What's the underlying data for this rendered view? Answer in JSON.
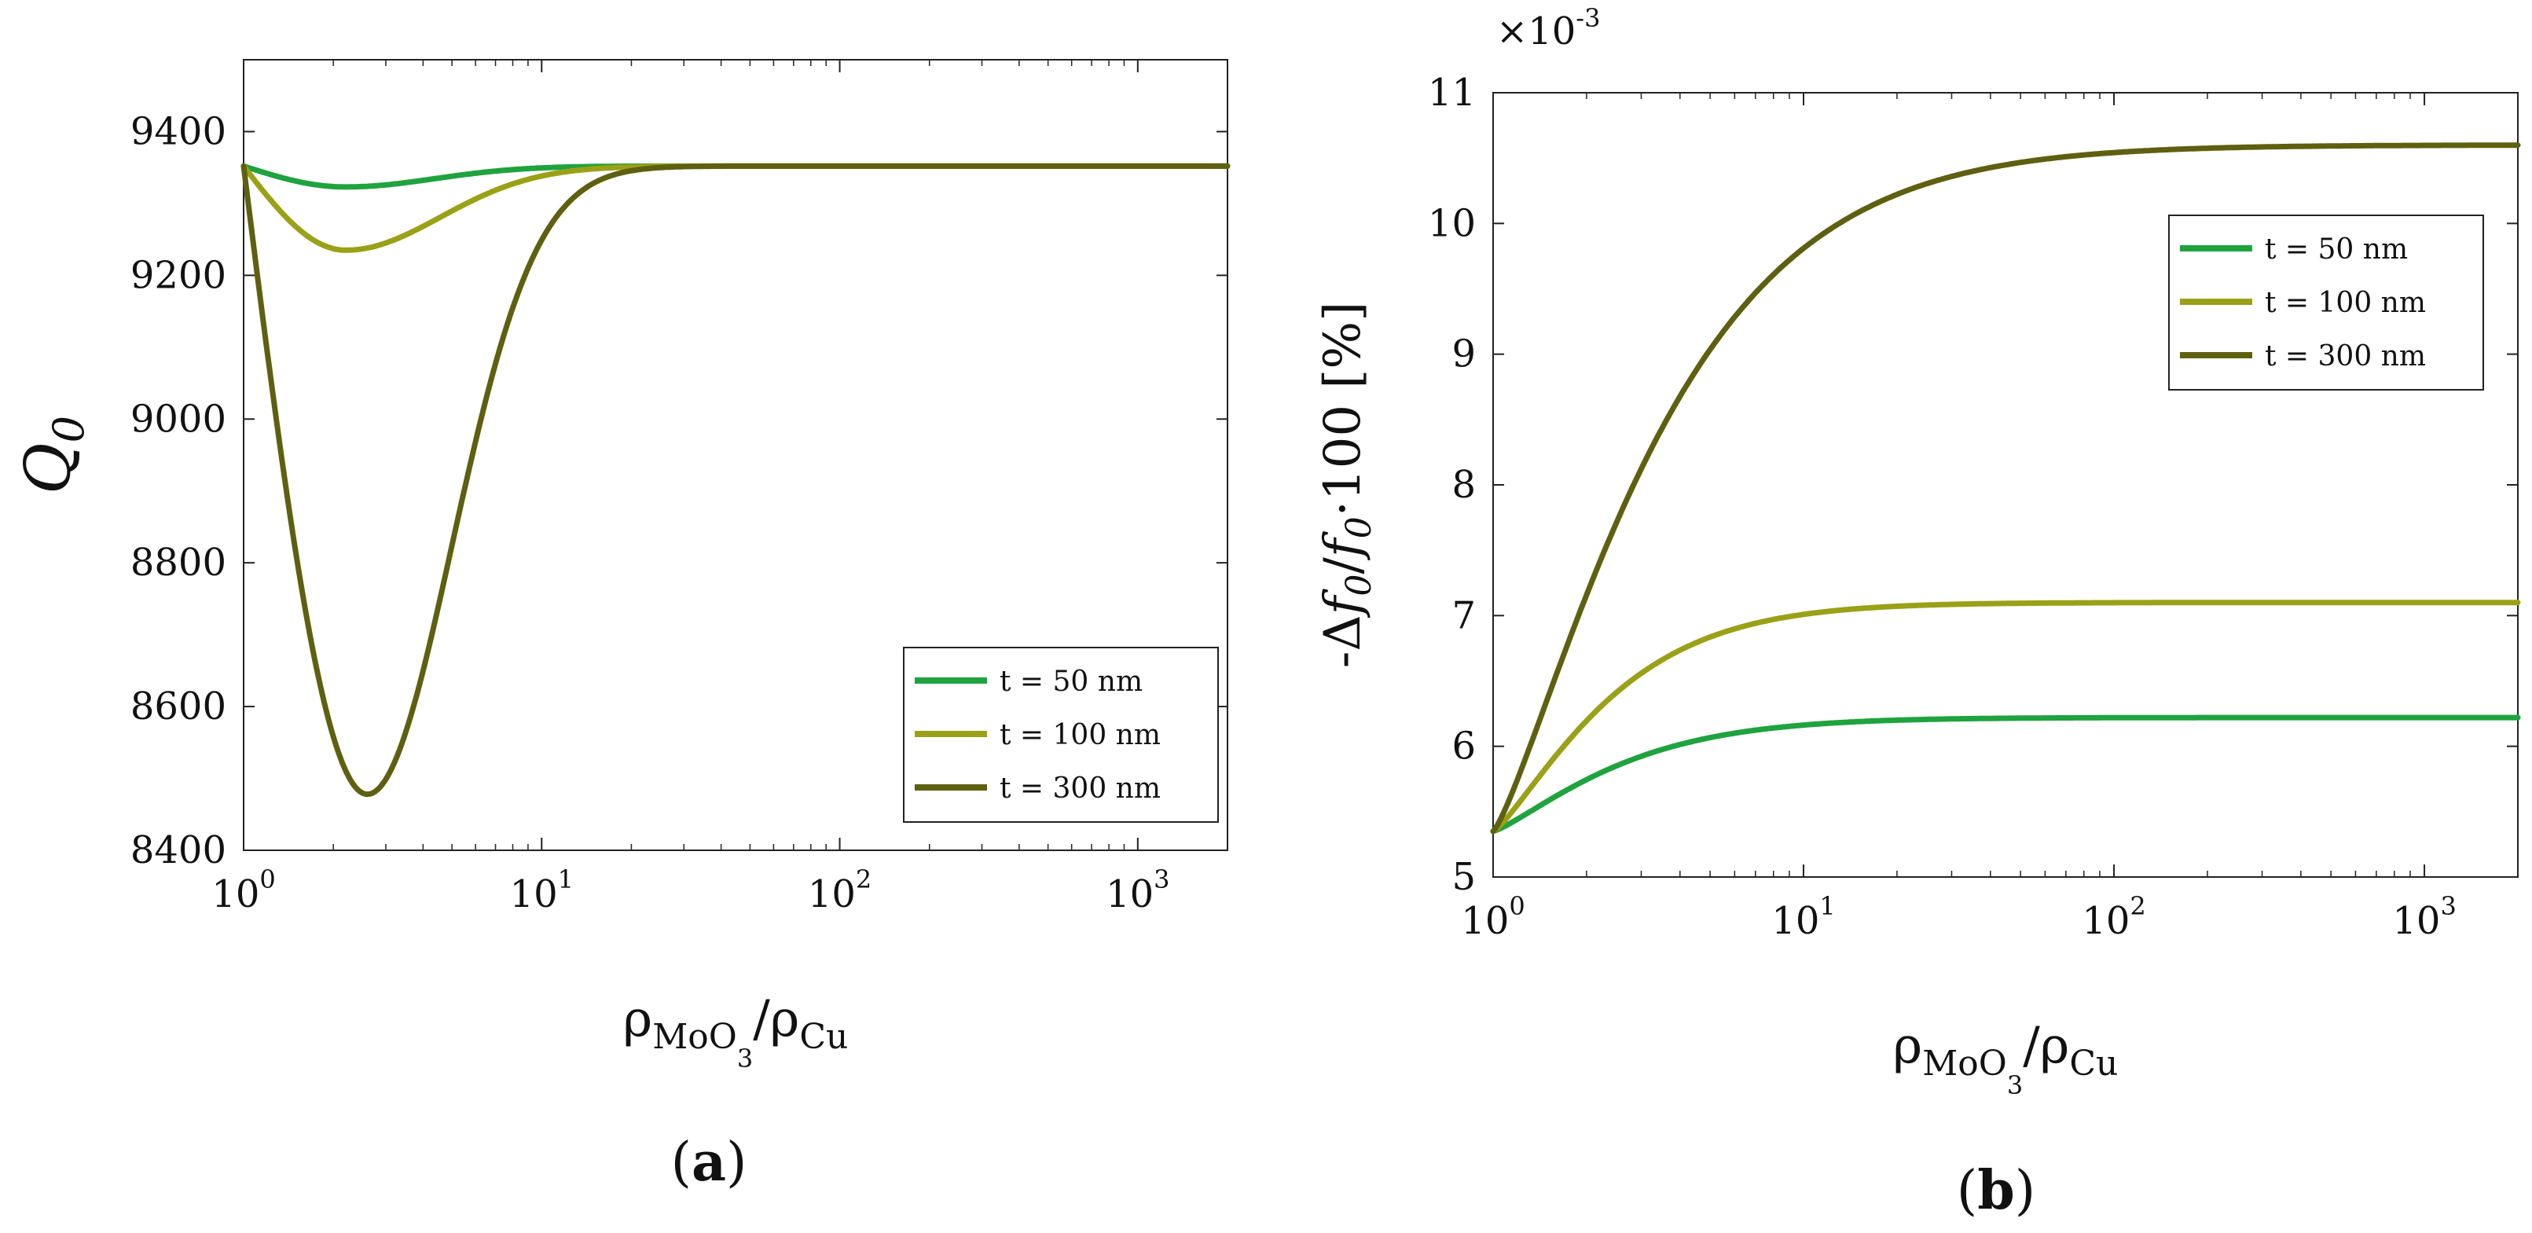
{
  "colors": {
    "t50": "#1fa33f",
    "t100": "#9aa116",
    "t300": "#5e6010",
    "axis": "#222222"
  },
  "chart_data": [
    {
      "id": "a",
      "type": "line",
      "panel_label": "a",
      "xscale": "log",
      "xlim": [
        1,
        2000
      ],
      "ylim": [
        8400,
        9500
      ],
      "xticks": [
        1,
        10,
        100,
        1000
      ],
      "xtick_labels": [
        {
          "base": "10",
          "exp": "0"
        },
        {
          "base": "10",
          "exp": "1"
        },
        {
          "base": "10",
          "exp": "2"
        },
        {
          "base": "10",
          "exp": "3"
        }
      ],
      "yticks": [
        8400,
        8600,
        8800,
        9000,
        9200,
        9400
      ],
      "ytick_labels": [
        "8400",
        "8600",
        "8800",
        "9000",
        "9200",
        "9400"
      ],
      "ylabel": {
        "main": "Q",
        "sub": "0"
      },
      "xlabel": {
        "rho": "ρ",
        "sub1": "MoO",
        "subsub": "3",
        "slash": "/",
        "rho2": "ρ",
        "sub2": "Cu"
      },
      "multiplier": null,
      "legend_position": "bottom-right",
      "series": [
        {
          "name": "t = 50 nm",
          "color_key": "t50",
          "model": "dip",
          "start": 9352,
          "end": 9352,
          "min_x": 2.2,
          "min_y": 9323,
          "width": 0.42
        },
        {
          "name": "t = 100 nm",
          "color_key": "t100",
          "model": "dip",
          "start": 9352,
          "end": 9352,
          "min_x": 2.2,
          "min_y": 9235,
          "width": 0.45
        },
        {
          "name": "t = 300 nm",
          "color_key": "t300",
          "model": "dip",
          "start": 9352,
          "end": 9352,
          "min_x": 2.6,
          "min_y": 8478,
          "width": 0.4
        }
      ]
    },
    {
      "id": "b",
      "type": "line",
      "panel_label": "b",
      "xscale": "log",
      "xlim": [
        1,
        2000
      ],
      "ylim": [
        5,
        11
      ],
      "xticks": [
        1,
        10,
        100,
        1000
      ],
      "xtick_labels": [
        {
          "base": "10",
          "exp": "0"
        },
        {
          "base": "10",
          "exp": "1"
        },
        {
          "base": "10",
          "exp": "2"
        },
        {
          "base": "10",
          "exp": "3"
        }
      ],
      "yticks": [
        5,
        6,
        7,
        8,
        9,
        10,
        11
      ],
      "ytick_labels": [
        "5",
        "6",
        "7",
        "8",
        "9",
        "10",
        "11"
      ],
      "ylabel": {
        "pre": "-Δ",
        "f1": "f",
        "sub1": "0",
        "slash": "/",
        "f2": "f",
        "sub2": "0",
        "post": "·100 [%]"
      },
      "xlabel": {
        "rho": "ρ",
        "sub1": "MoO",
        "subsub": "3",
        "slash": "/",
        "rho2": "ρ",
        "sub2": "Cu"
      },
      "multiplier": {
        "base": "×10",
        "exp": "-3"
      },
      "legend_position": "top-right",
      "series": [
        {
          "name": "t = 50 nm",
          "color_key": "t50",
          "model": "rise",
          "start": 5.35,
          "end": 6.22,
          "scale": 0.45
        },
        {
          "name": "t = 100 nm",
          "color_key": "t100",
          "model": "rise",
          "start": 5.35,
          "end": 7.1,
          "scale": 0.42
        },
        {
          "name": "t = 300 nm",
          "color_key": "t300",
          "model": "rise",
          "start": 5.35,
          "end": 10.6,
          "scale": 0.6
        }
      ]
    }
  ]
}
